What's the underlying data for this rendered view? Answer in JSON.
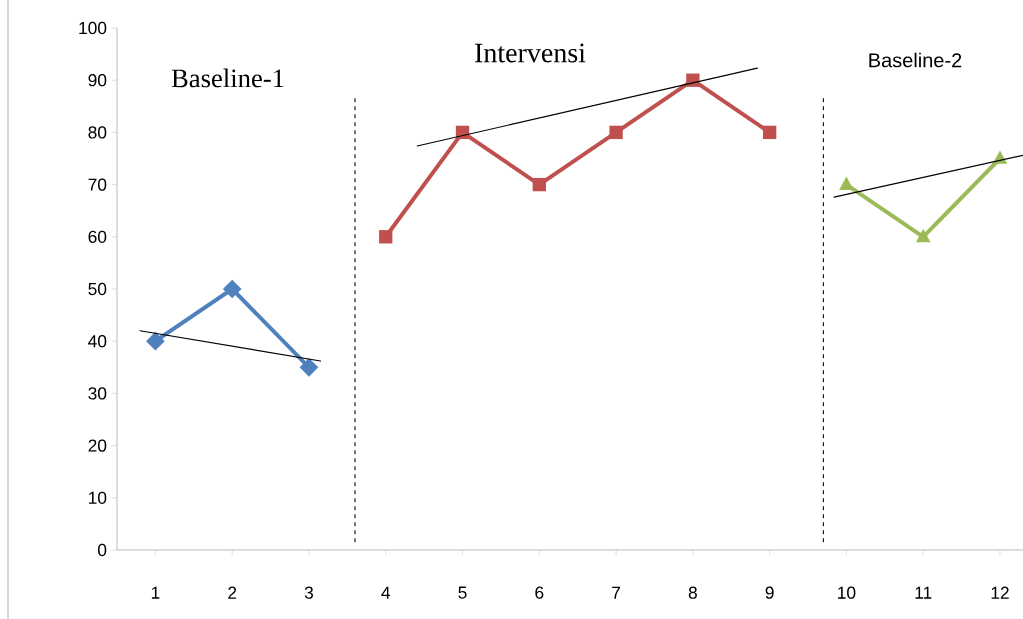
{
  "chart_data": {
    "type": "line",
    "xlim": [
      0.5,
      12.3
    ],
    "ylim": [
      0,
      100
    ],
    "xticks": [
      1,
      2,
      3,
      4,
      5,
      6,
      7,
      8,
      9,
      10,
      11,
      12
    ],
    "yticks": [
      0,
      10,
      20,
      30,
      40,
      50,
      60,
      70,
      80,
      90,
      100
    ],
    "grid": false,
    "series": [
      {
        "color": "#4f81bd",
        "marker": "diamond",
        "x": [
          1,
          2,
          3
        ],
        "values": [
          40,
          50,
          35
        ]
      },
      {
        "color": "#c0504d",
        "marker": "square",
        "x": [
          4,
          5,
          6,
          7,
          8,
          9
        ],
        "values": [
          60,
          80,
          70,
          80,
          90,
          80
        ]
      },
      {
        "color": "#9bbb59",
        "marker": "triangle",
        "x": [
          10,
          11,
          12
        ],
        "values": [
          70,
          60,
          75
        ]
      },
      {
        "type": "line",
        "color": "#000000",
        "marker": "none",
        "x": [
          0.8,
          3.15
        ],
        "values": [
          42,
          36.2
        ]
      },
      {
        "type": "line",
        "color": "#000000",
        "marker": "none",
        "x": [
          4.41,
          8.84
        ],
        "values": [
          77.4,
          92.3
        ]
      },
      {
        "type": "line",
        "color": "#000000",
        "marker": "none",
        "x": [
          9.84,
          12.3
        ],
        "values": [
          67.6,
          75.6
        ]
      }
    ],
    "ref_lines": [
      {
        "axis": "x",
        "value": 3.6,
        "color": "#000000",
        "line_style": "dashed"
      },
      {
        "axis": "x",
        "value": 9.7,
        "color": "#000000",
        "line_style": "dashed"
      }
    ],
    "annotations": [
      "Baseline-1",
      "Intervensi",
      "Baseline-2"
    ]
  }
}
